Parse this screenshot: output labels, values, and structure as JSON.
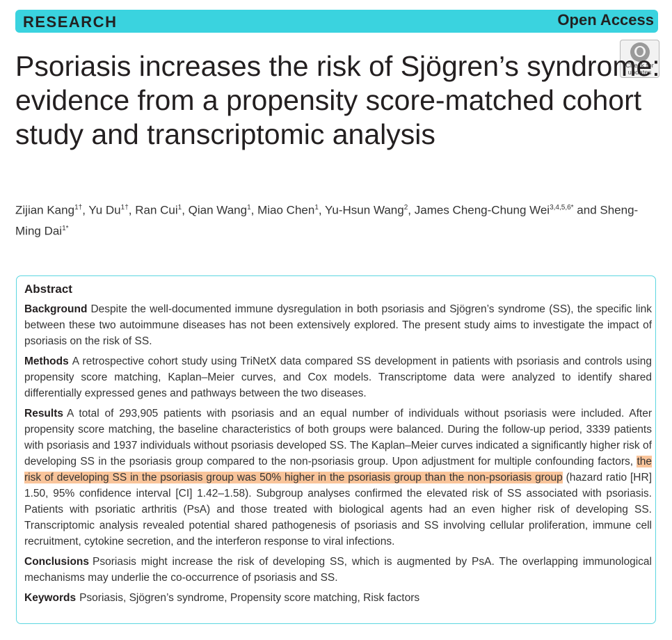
{
  "header": {
    "section_label": "RESEARCH",
    "access_label": "Open Access",
    "accent_color": "#3ad3df",
    "check_for_updates": [
      "Check for",
      "updates"
    ]
  },
  "article": {
    "title": "Psoriasis increases the risk of Sjögren’s syndrome: evidence from a propensity score-matched cohort study and transcriptomic analysis",
    "authors": [
      {
        "name": "Zijian Kang",
        "sup": "1†"
      },
      {
        "name": "Yu Du",
        "sup": "1†"
      },
      {
        "name": "Ran Cui",
        "sup": "1"
      },
      {
        "name": "Qian Wang",
        "sup": "1"
      },
      {
        "name": "Miao Chen",
        "sup": "1"
      },
      {
        "name": "Yu-Hsun Wang",
        "sup": "2"
      },
      {
        "name": "James Cheng-Chung Wei",
        "sup": "3,4,5,6*"
      },
      {
        "name": "Sheng-Ming Dai",
        "sup": "1*"
      }
    ],
    "author_separator": ", ",
    "author_and": " and "
  },
  "abstract": {
    "heading": "Abstract",
    "highlight_color": "#f9c49a",
    "background": {
      "label": "Background",
      "text": "Despite the well-documented immune dysregulation in both psoriasis and Sjögren’s syndrome (SS), the specific link between these two autoimmune diseases has not been extensively explored. The present study aims to investigate the impact of psoriasis on the risk of SS."
    },
    "methods": {
      "label": "Methods",
      "text": "A retrospective cohort study using TriNetX data compared SS development in patients with psoriasis and controls using propensity score matching, Kaplan–Meier curves, and Cox models. Transcriptome data were analyzed to identify shared differentially expressed genes and pathways between the two diseases."
    },
    "results": {
      "label": "Results",
      "text_before": "A total of 293,905 patients with psoriasis and an equal number of individuals without psoriasis were included. After propensity score matching, the baseline characteristics of both groups were balanced. During the follow-up period, 3339 patients with psoriasis and 1937 individuals without psoriasis developed SS. The Kaplan–Meier curves indicated a significantly higher risk of developing SS in the psoriasis group compared to the non-psoriasis group. Upon adjustment for multiple confounding factors, ",
      "text_highlight": "the risk of developing SS in the psoriasis group was 50% higher in the psoriasis group than the non-psoriasis group",
      "text_after": " (hazard ratio [HR] 1.50, 95% confidence interval [CI] 1.42–1.58). Subgroup analyses confirmed the elevated risk of SS associated with psoriasis. Patients with psoriatic arthritis (PsA) and those treated with biological agents had an even higher risk of developing SS. Transcriptomic analysis revealed potential shared pathogenesis of psoriasis and SS involving cellular proliferation, immune cell recruitment, cytokine secretion, and the interferon response to viral infections."
    },
    "conclusions": {
      "label": "Conclusions",
      "text": "Psoriasis might increase the risk of developing SS, which is augmented by PsA. The overlapping immunological mechanisms may underlie the co-occurrence of psoriasis and SS."
    },
    "keywords": {
      "label": "Keywords",
      "text": "Psoriasis, Sjögren’s syndrome, Propensity score matching, Risk factors"
    }
  }
}
